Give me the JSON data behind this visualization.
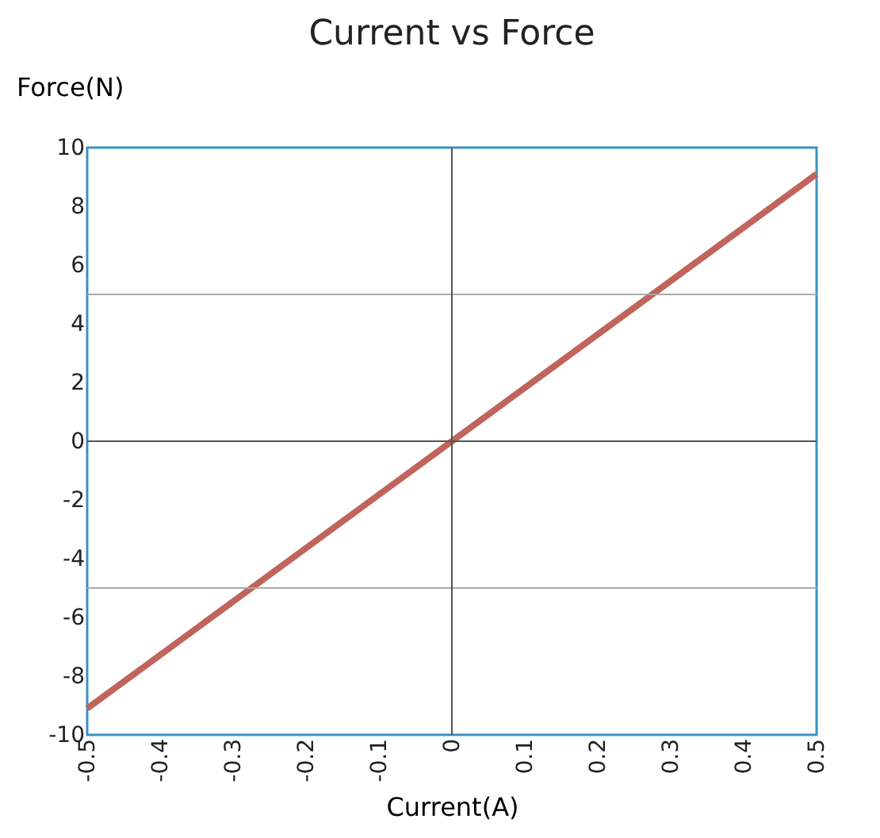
{
  "chart_data": {
    "type": "line",
    "title": "Current vs Force",
    "xlabel": "Current(A)",
    "ylabel": "Force(N)",
    "x": [
      -0.5,
      0,
      0.5
    ],
    "series": [
      {
        "color": "#c0645c",
        "values": [
          -9.1,
          0,
          9.1
        ]
      }
    ],
    "xlim": [
      -0.5,
      0.5
    ],
    "xticks": [
      -0.5,
      -0.4,
      -0.3,
      -0.2,
      -0.1,
      0,
      0.1,
      0.2,
      0.3,
      0.4,
      0.5
    ],
    "ylim": [
      -10,
      10
    ],
    "yticks": [
      -10,
      -8,
      -6,
      -4,
      -2,
      0,
      2,
      4,
      6,
      8,
      10
    ],
    "ref_lines": [
      {
        "axis": "y",
        "value": 5,
        "color": "#aaaaaa"
      },
      {
        "axis": "y",
        "value": -5,
        "color": "#aaaaaa"
      },
      {
        "axis": "y",
        "value": 0,
        "color": "#555555"
      },
      {
        "axis": "x",
        "value": 0,
        "color": "#555555"
      }
    ],
    "grid": false,
    "marker": "none",
    "line_style": "solid"
  }
}
